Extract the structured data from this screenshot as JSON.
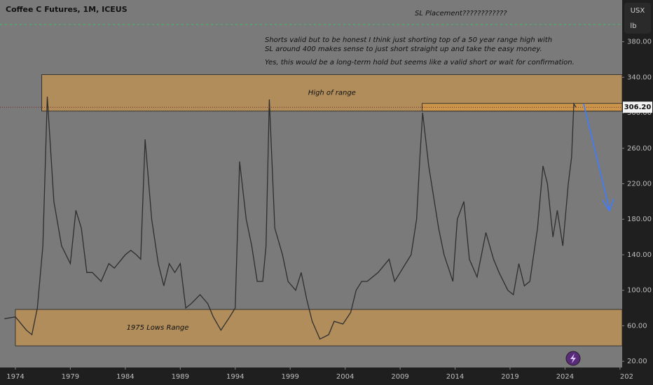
{
  "chart_data": {
    "type": "line",
    "title": "Coffee C Futures, 1M, ICEUS",
    "heading_note": "SL Placement????????????",
    "notes": [
      "Shorts valid but to be honest I think just shorting top of a 50 year range high with",
      "SL around 400 makes sense to just short straight up and take the easy money.",
      "Yes, this would be a long-term hold but seems like a valid short or wait for confirmation."
    ],
    "currency": "USX",
    "unit": "lb",
    "color": "#2e2e2e",
    "x": [
      1973.0,
      1974.0,
      1975.0,
      1975.5,
      1976.0,
      1976.5,
      1976.9,
      1977.5,
      1978.2,
      1979.0,
      1979.5,
      1980.0,
      1980.5,
      1981.0,
      1981.8,
      1982.5,
      1983.0,
      1984.0,
      1984.5,
      1985.0,
      1985.4,
      1985.8,
      1986.4,
      1987.0,
      1987.5,
      1988.0,
      1988.5,
      1989.0,
      1989.5,
      1990.0,
      1990.8,
      1991.5,
      1992.0,
      1992.7,
      1993.5,
      1994.0,
      1994.4,
      1995.0,
      1995.5,
      1996.0,
      1996.5,
      1996.8,
      1997.1,
      1997.6,
      1998.3,
      1998.8,
      1999.5,
      2000.0,
      2000.5,
      2001.0,
      2001.7,
      2002.5,
      2003.0,
      2003.8,
      2004.5,
      2005.0,
      2005.5,
      2006.0,
      2007.0,
      2008.0,
      2008.5,
      2009.0,
      2009.5,
      2010.0,
      2010.5,
      2010.8,
      2011.05,
      2011.6,
      2012.5,
      2013.0,
      2013.8,
      2014.2,
      2014.8,
      2015.3,
      2016.0,
      2016.8,
      2017.5,
      2018.0,
      2018.8,
      2019.3,
      2019.8,
      2020.3,
      2020.8,
      2021.5,
      2022.0,
      2022.4,
      2022.9,
      2023.3,
      2023.8,
      2024.3,
      2024.6,
      2024.8,
      2025.0
    ],
    "values": [
      68,
      70,
      55,
      50,
      80,
      150,
      318,
      200,
      150,
      130,
      190,
      170,
      120,
      120,
      110,
      130,
      125,
      140,
      145,
      140,
      135,
      270,
      180,
      130,
      105,
      130,
      120,
      130,
      80,
      85,
      95,
      85,
      70,
      55,
      70,
      80,
      245,
      180,
      150,
      110,
      110,
      150,
      315,
      170,
      140,
      110,
      100,
      120,
      90,
      65,
      45,
      50,
      65,
      62,
      75,
      100,
      110,
      110,
      120,
      135,
      110,
      120,
      130,
      140,
      180,
      250,
      300,
      240,
      170,
      140,
      110,
      180,
      200,
      135,
      115,
      165,
      135,
      120,
      100,
      95,
      130,
      105,
      110,
      170,
      240,
      220,
      160,
      190,
      150,
      220,
      250,
      310,
      306.2
    ],
    "last_value_label": "306.20",
    "xlim": [
      1972.6,
      2029.2
    ],
    "ylim": [
      13,
      427
    ],
    "xticks": [
      1974,
      1979,
      1984,
      1989,
      1994,
      1999,
      2004,
      2009,
      2014,
      2019,
      2024,
      {
        "value": 2029,
        "label": "202"
      }
    ],
    "yticks": [
      {
        "value": 20,
        "label": "20.00"
      },
      {
        "value": 60,
        "label": "60.00"
      },
      {
        "value": 100,
        "label": "100.00"
      },
      {
        "value": 140,
        "label": "140.00"
      },
      {
        "value": 180,
        "label": "180.00"
      },
      {
        "value": 220,
        "label": "220.00"
      },
      {
        "value": 260,
        "label": "260.00"
      },
      {
        "value": 300,
        "label": "300.00"
      },
      {
        "value": 340,
        "label": "340.00"
      },
      {
        "value": 380,
        "label": "380.00"
      }
    ],
    "zones": [
      {
        "label": "High of range",
        "x_start": 1976.4,
        "from": 301.8,
        "to": 342.9
      },
      {
        "x_start": 2011.0,
        "from": 301.8,
        "to": 310.5
      },
      {
        "label": "1975 Lows Range",
        "x_start": 1974.0,
        "from": 37.4,
        "to": 78.4
      }
    ]
  }
}
